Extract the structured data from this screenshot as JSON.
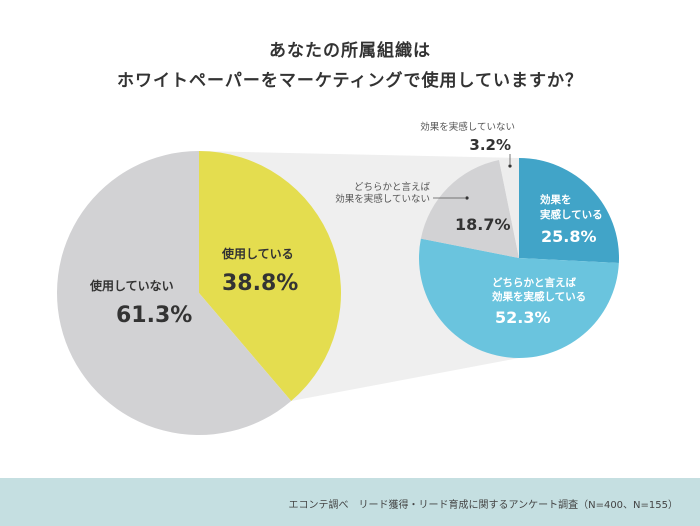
{
  "title": {
    "line1": "あなたの所属組織は",
    "line2": "ホワイトペーパーをマーケティングで使用していますか？"
  },
  "chart_data": [
    {
      "type": "pie",
      "slices": [
        {
          "label": "使用している",
          "value": 38.8,
          "value_label": "38.8%",
          "color": "#e4dd4f"
        },
        {
          "label": "使用していない",
          "value": 61.3,
          "value_label": "61.3%",
          "color": "#d2d2d4"
        }
      ]
    },
    {
      "type": "pie",
      "slices": [
        {
          "label_lines": [
            "効果を",
            "実感している"
          ],
          "value": 25.8,
          "value_label": "25.8%",
          "color": "#41a4c8"
        },
        {
          "label_lines": [
            "どちらかと言えば",
            "効果を実感している"
          ],
          "value": 52.3,
          "value_label": "52.3%",
          "color": "#6ac4de"
        },
        {
          "label_lines": [
            "どちらかと言えば",
            "効果を実感していない"
          ],
          "value": 18.7,
          "value_label": "18.7%",
          "color": "#d2d2d4"
        },
        {
          "label_lines": [
            "効果を実感していない"
          ],
          "value": 3.2,
          "value_label": "3.2%",
          "color": "#ededed"
        }
      ]
    }
  ],
  "connector_color": "#efefef",
  "footer": {
    "text": "エコンテ調べ　リード獲得・リード育成に関するアンケート調査（N=400、N=155）"
  }
}
